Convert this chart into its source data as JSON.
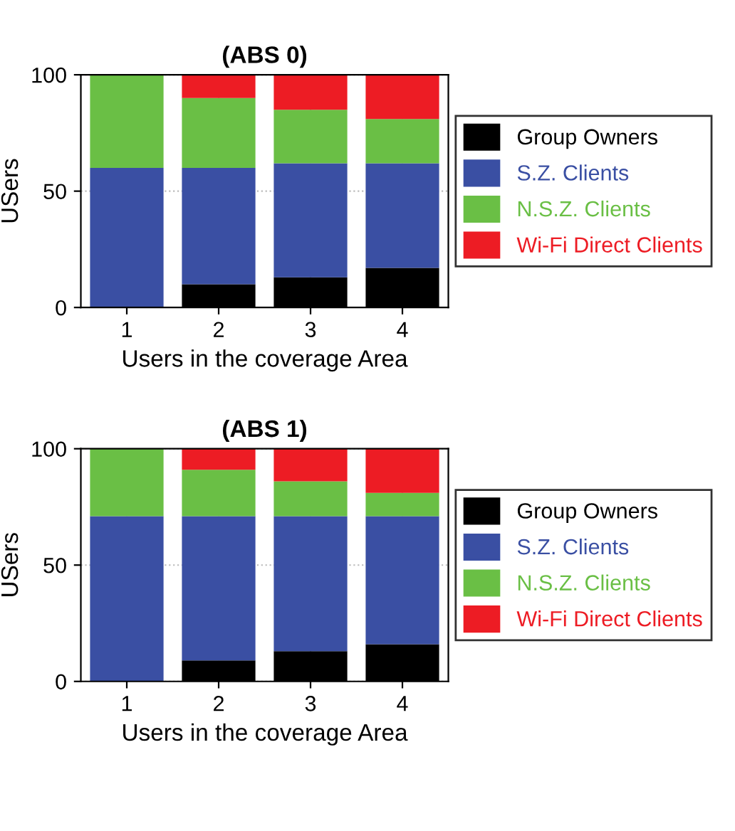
{
  "chart_data": [
    {
      "type": "bar",
      "title": "(ABS 0)",
      "xlabel": "Users in the coverage Area",
      "ylabel": "USers",
      "categories": [
        "1",
        "2",
        "3",
        "4"
      ],
      "stacked": true,
      "ylim": [
        0,
        100
      ],
      "yticks": [
        0,
        50,
        100
      ],
      "grid": true,
      "legend": "right",
      "series": [
        {
          "name": "Group Owners",
          "color": "#000000",
          "values": [
            0,
            10,
            13,
            17
          ]
        },
        {
          "name": "S.Z. Clients",
          "color": "#3a4fa3",
          "values": [
            60,
            50,
            49,
            45
          ]
        },
        {
          "name": "N.S.Z. Clients",
          "color": "#6abf45",
          "values": [
            40,
            30,
            23,
            19
          ]
        },
        {
          "name": "Wi-Fi Direct Clients",
          "color": "#ed1c24",
          "values": [
            0,
            10,
            15,
            19
          ]
        }
      ]
    },
    {
      "type": "bar",
      "title": "(ABS 1)",
      "xlabel": "Users in the coverage Area",
      "ylabel": "USers",
      "categories": [
        "1",
        "2",
        "3",
        "4"
      ],
      "stacked": true,
      "ylim": [
        0,
        100
      ],
      "yticks": [
        0,
        50,
        100
      ],
      "grid": true,
      "legend": "right",
      "series": [
        {
          "name": "Group Owners",
          "color": "#000000",
          "values": [
            0,
            9,
            13,
            16
          ]
        },
        {
          "name": "S.Z. Clients",
          "color": "#3a4fa3",
          "values": [
            71,
            62,
            58,
            55
          ]
        },
        {
          "name": "N.S.Z. Clients",
          "color": "#6abf45",
          "values": [
            29,
            20,
            15,
            10
          ]
        },
        {
          "name": "Wi-Fi Direct Clients",
          "color": "#ed1c24",
          "values": [
            0,
            9,
            14,
            19
          ]
        }
      ]
    }
  ]
}
